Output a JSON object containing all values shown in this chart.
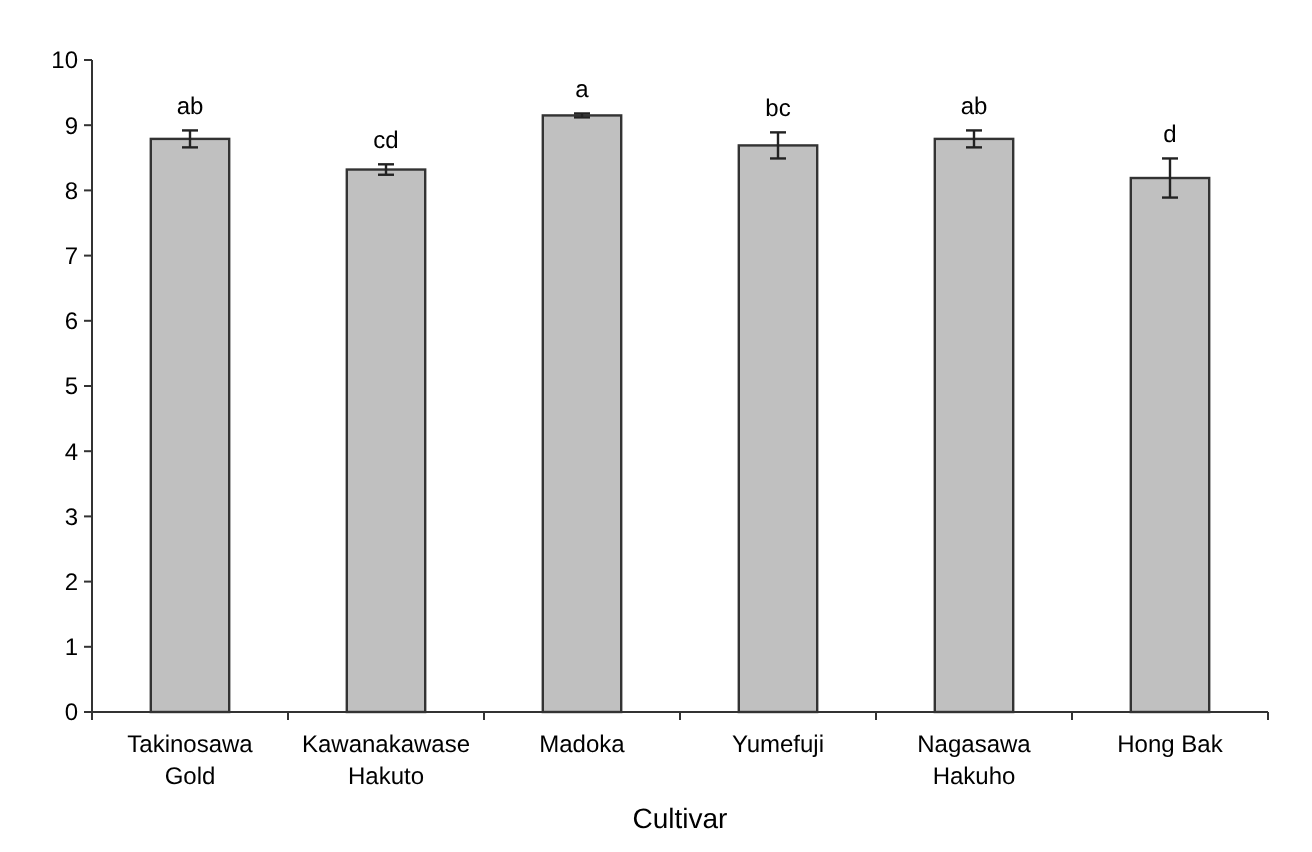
{
  "chart_data": {
    "type": "bar",
    "xlabel": "Cultivar",
    "categories": [
      "Takinosawa Gold",
      "Kawanakawase Hakuto",
      "Madoka",
      "Yumefuji",
      "Nagasawa Hakuho",
      "Hong Bak"
    ],
    "values": [
      8.79,
      8.32,
      9.15,
      8.69,
      8.79,
      8.19
    ],
    "errors": [
      0.13,
      0.08,
      0.03,
      0.2,
      0.13,
      0.3
    ],
    "color": "#c0c0c0",
    "ylim": [
      0,
      10
    ],
    "yticks": [
      0,
      1,
      2,
      3,
      4,
      5,
      6,
      7,
      8,
      9,
      10
    ],
    "grid": false,
    "annotations": [
      {
        "text": "ab",
        "x": "Takinosawa Gold",
        "y": 8.92
      },
      {
        "text": "cd",
        "x": "Kawanakawase Hakuto",
        "y": 8.4
      },
      {
        "text": "a",
        "x": "Madoka",
        "y": 9.18
      },
      {
        "text": "bc",
        "x": "Yumefuji",
        "y": 8.89
      },
      {
        "text": "ab",
        "x": "Nagasawa Hakuho",
        "y": 8.92
      },
      {
        "text": "d",
        "x": "Hong Bak",
        "y": 8.49
      }
    ]
  }
}
